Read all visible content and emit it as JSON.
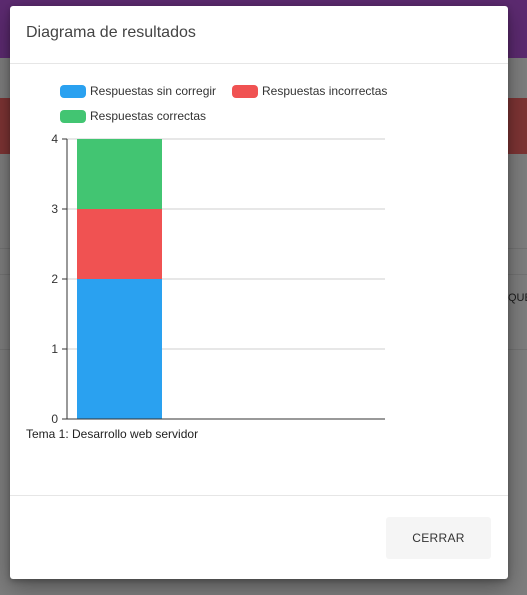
{
  "background": {
    "cut_off_header_fragment": "QUE"
  },
  "dialog": {
    "title": "Diagrama de resultados",
    "close_label": "CERRAR"
  },
  "chart_data": {
    "type": "bar",
    "stacked": true,
    "categories": [
      "Tema 1: Desarrollo web servidor"
    ],
    "series": [
      {
        "name": "Respuestas sin corregir",
        "values": [
          2
        ],
        "color": "#2aa1f0"
      },
      {
        "name": "Respuestas incorrectas",
        "values": [
          1
        ],
        "color": "#f05252"
      },
      {
        "name": "Respuestas correctas",
        "values": [
          1
        ],
        "color": "#42c572"
      }
    ],
    "ylim": [
      0,
      4
    ],
    "yticks": [
      "0",
      "1",
      "2",
      "3",
      "4"
    ],
    "grid": true,
    "legend": "top-left"
  }
}
